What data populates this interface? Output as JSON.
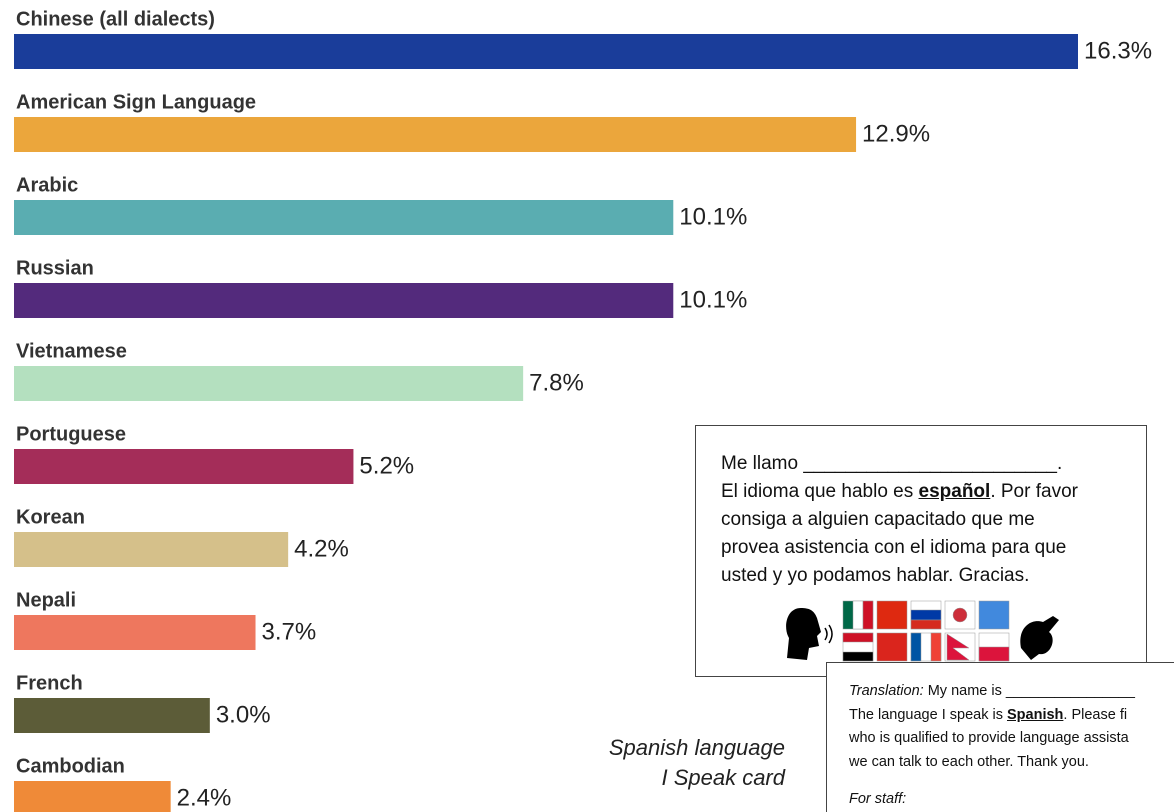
{
  "chart_data": {
    "type": "bar",
    "categories": [
      "Chinese (all dialects)",
      "American Sign Language",
      "Arabic",
      "Russian",
      "Vietnamese",
      "Portuguese",
      "Korean",
      "Nepali",
      "French",
      "Cambodian"
    ],
    "values": [
      16.3,
      12.9,
      10.1,
      10.1,
      7.8,
      5.2,
      4.2,
      3.7,
      3.0,
      2.4
    ],
    "value_labels": [
      "16.3%",
      "12.9%",
      "10.1%",
      "10.1%",
      "7.8%",
      "5.2%",
      "4.2%",
      "3.7%",
      "3.0%",
      "2.4%"
    ],
    "colors": [
      "#1a3d9a",
      "#eba63c",
      "#5aadb1",
      "#532a7c",
      "#b4e0bf",
      "#a42d59",
      "#d5c08a",
      "#ee775e",
      "#5c5c38",
      "#ef8a38"
    ]
  },
  "card": {
    "name_line": "Me llamo ________________________.",
    "line1_start": "El idioma que hablo es ",
    "line1_bold": "español",
    "line1_end": ". Por favor",
    "line2": "consiga a alguien capacitado que me",
    "line3": "provea asistencia con el idioma para que",
    "line4": "usted y yo podamos hablar. Gracias."
  },
  "translation": {
    "label": "Translation:",
    "name_line": " My name is ________________",
    "line1_start": "The language I speak is ",
    "line1_bold": "Spanish",
    "line1_end": ". Please fi",
    "line2": "who is qualified to provide language assista",
    "line3": "we can talk to each other. Thank you.",
    "staff": "For staff:"
  },
  "caption": [
    "Spanish language",
    "I Speak card"
  ]
}
